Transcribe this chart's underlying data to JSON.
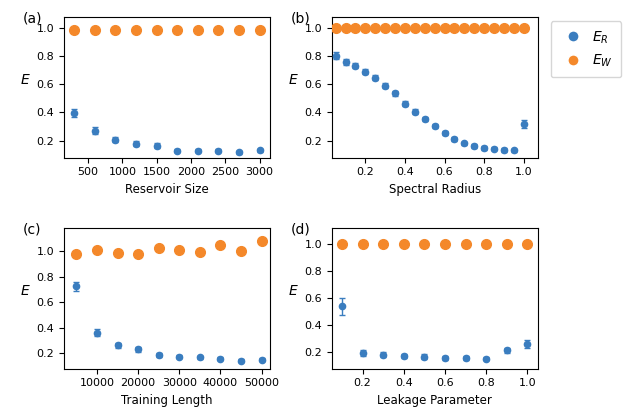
{
  "panel_a": {
    "label": "(a)",
    "xlabel": "Reservoir Size",
    "blue_x": [
      300,
      600,
      900,
      1200,
      1500,
      1800,
      2100,
      2400,
      2700,
      3000
    ],
    "blue_y": [
      0.397,
      0.27,
      0.207,
      0.178,
      0.165,
      0.128,
      0.128,
      0.128,
      0.118,
      0.132
    ],
    "blue_yerr": [
      0.03,
      0.025,
      0.02,
      0.018,
      0.015,
      0.012,
      0.012,
      0.012,
      0.01,
      0.012
    ],
    "orange_x": [
      300,
      600,
      900,
      1200,
      1500,
      1800,
      2100,
      2400,
      2700,
      3000
    ],
    "orange_y": [
      0.985,
      0.985,
      0.985,
      0.985,
      0.985,
      0.985,
      0.983,
      0.985,
      0.985,
      0.985
    ],
    "ylim": [
      0.08,
      1.08
    ],
    "xlim": [
      150,
      3150
    ],
    "yticks": [
      0.2,
      0.4,
      0.6,
      0.8,
      1.0
    ]
  },
  "panel_b": {
    "label": "(b)",
    "xlabel": "Spectral Radius",
    "blue_x": [
      0.05,
      0.1,
      0.15,
      0.2,
      0.25,
      0.3,
      0.35,
      0.4,
      0.45,
      0.5,
      0.55,
      0.6,
      0.65,
      0.7,
      0.75,
      0.8,
      0.85,
      0.9,
      0.95,
      1.0
    ],
    "blue_y": [
      0.803,
      0.76,
      0.733,
      0.69,
      0.648,
      0.59,
      0.535,
      0.463,
      0.407,
      0.353,
      0.305,
      0.257,
      0.21,
      0.18,
      0.16,
      0.148,
      0.143,
      0.133,
      0.132,
      0.32
    ],
    "blue_yerr": [
      0.025,
      0.022,
      0.02,
      0.018,
      0.018,
      0.018,
      0.018,
      0.018,
      0.016,
      0.016,
      0.015,
      0.015,
      0.014,
      0.013,
      0.013,
      0.012,
      0.012,
      0.012,
      0.012,
      0.03
    ],
    "orange_x": [
      0.05,
      0.1,
      0.15,
      0.2,
      0.25,
      0.3,
      0.35,
      0.4,
      0.45,
      0.5,
      0.55,
      0.6,
      0.65,
      0.7,
      0.75,
      0.8,
      0.85,
      0.9,
      0.95,
      1.0
    ],
    "orange_y": [
      1.0,
      1.0,
      1.0,
      1.0,
      1.0,
      1.0,
      1.0,
      1.0,
      1.0,
      1.0,
      1.0,
      1.0,
      1.0,
      1.0,
      1.0,
      1.0,
      1.0,
      1.0,
      1.0,
      1.0
    ],
    "ylim": [
      0.08,
      1.08
    ],
    "xlim": [
      0.03,
      1.07
    ],
    "yticks": [
      0.2,
      0.4,
      0.6,
      0.8,
      1.0
    ]
  },
  "panel_c": {
    "label": "(c)",
    "xlabel": "Training Length",
    "blue_x": [
      5000,
      10000,
      15000,
      20000,
      25000,
      30000,
      35000,
      40000,
      45000,
      50000
    ],
    "blue_y": [
      0.725,
      0.36,
      0.262,
      0.232,
      0.19,
      0.175,
      0.168,
      0.158,
      0.143,
      0.152
    ],
    "blue_yerr": [
      0.035,
      0.028,
      0.022,
      0.018,
      0.016,
      0.015,
      0.014,
      0.013,
      0.012,
      0.012
    ],
    "orange_x": [
      5000,
      10000,
      15000,
      20000,
      25000,
      30000,
      35000,
      40000,
      45000,
      50000
    ],
    "orange_y": [
      0.975,
      1.005,
      0.988,
      0.975,
      1.025,
      1.005,
      0.992,
      1.045,
      1.003,
      1.08
    ],
    "ylim": [
      0.08,
      1.18
    ],
    "xlim": [
      2000,
      52000
    ],
    "yticks": [
      0.2,
      0.4,
      0.6,
      0.8,
      1.0
    ]
  },
  "panel_d": {
    "label": "(d)",
    "xlabel": "Leakage Parameter",
    "blue_x": [
      0.1,
      0.2,
      0.3,
      0.4,
      0.5,
      0.6,
      0.7,
      0.8,
      0.9,
      1.0
    ],
    "blue_y": [
      0.54,
      0.195,
      0.185,
      0.175,
      0.17,
      0.162,
      0.158,
      0.155,
      0.215,
      0.26
    ],
    "blue_yerr": [
      0.06,
      0.02,
      0.018,
      0.017,
      0.016,
      0.015,
      0.014,
      0.014,
      0.02,
      0.03
    ],
    "orange_x": [
      0.1,
      0.2,
      0.3,
      0.4,
      0.5,
      0.6,
      0.7,
      0.8,
      0.9,
      1.0
    ],
    "orange_y": [
      1.0,
      1.0,
      1.0,
      1.0,
      1.0,
      1.0,
      1.0,
      1.0,
      1.0,
      1.0
    ],
    "ylim": [
      0.08,
      1.12
    ],
    "xlim": [
      0.05,
      1.05
    ],
    "yticks": [
      0.2,
      0.4,
      0.6,
      0.8,
      1.0
    ]
  },
  "blue_color": "#3a7dbf",
  "orange_color": "#f4882a",
  "ylabel": "E",
  "legend_labels": [
    "$E_R$",
    "$E_W$"
  ],
  "blue_ms": 4.5,
  "orange_ms": 7,
  "capsize": 2.5,
  "elinewidth": 1.0,
  "capthick": 1.0
}
